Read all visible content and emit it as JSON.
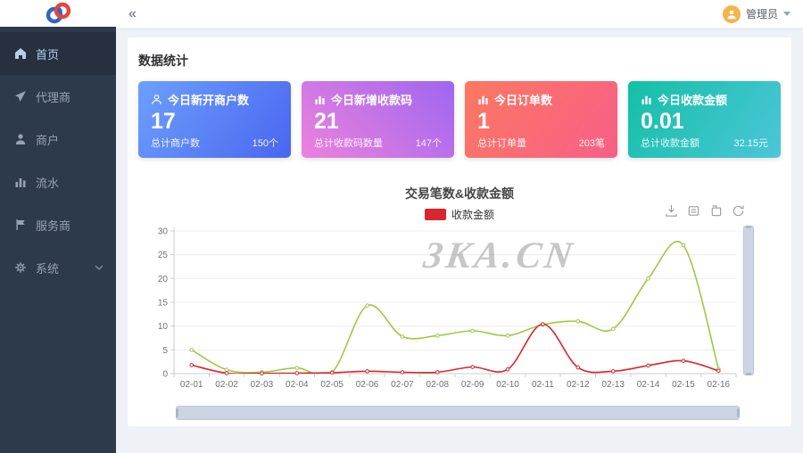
{
  "header": {
    "collapse_icon": "«",
    "user": {
      "name": "管理员"
    }
  },
  "sidebar": {
    "items": [
      {
        "label": "首页",
        "icon": "home-icon",
        "active": true
      },
      {
        "label": "代理商",
        "icon": "send-icon",
        "active": false
      },
      {
        "label": "商户",
        "icon": "user-icon",
        "active": false
      },
      {
        "label": "流水",
        "icon": "bar-chart-icon",
        "active": false
      },
      {
        "label": "服务商",
        "icon": "flag-icon",
        "active": false
      },
      {
        "label": "系统",
        "icon": "gear-icon",
        "active": false,
        "has_children": true
      }
    ]
  },
  "main": {
    "section_title": "数据统计",
    "cards": [
      {
        "icon": "user-icon",
        "title": "今日新开商户数",
        "value": "17",
        "footer_label": "总计商户数",
        "footer_value": "150个",
        "gradient_css": "linear-gradient(125deg,#6d9ffc,#4a66f0)"
      },
      {
        "icon": "bar-chart-icon",
        "title": "今日新增收款码",
        "value": "21",
        "footer_label": "总计收款码数量",
        "footer_value": "147个",
        "gradient_css": "linear-gradient(45deg,#ec82dd,#9f66f0)"
      },
      {
        "icon": "bar-chart-icon",
        "title": "今日订单数",
        "value": "1",
        "footer_label": "总计订单量",
        "footer_value": "203笔",
        "gradient_css": "linear-gradient(125deg,#fb7862,#f85f87)"
      },
      {
        "icon": "bar-chart-icon",
        "title": "今日收款金额",
        "value": "0.01",
        "footer_label": "总计收款金额",
        "footer_value": "32.15元",
        "gradient_css": "linear-gradient(125deg,#14bfa6,#4cc6d9)"
      }
    ],
    "watermark": "3KA.CN"
  },
  "chart_data": {
    "type": "line",
    "title": "交易笔数&收款金额",
    "categories": [
      "02-01",
      "02-02",
      "02-03",
      "02-04",
      "02-05",
      "02-06",
      "02-07",
      "02-08",
      "02-09",
      "02-10",
      "02-11",
      "02-12",
      "02-13",
      "02-14",
      "02-15",
      "02-16"
    ],
    "series": [
      {
        "name": "交易笔数",
        "color": "#9bca44",
        "values": [
          5,
          0.8,
          0.3,
          1.2,
          0.3,
          14.3,
          7.8,
          8,
          9,
          8,
          10.3,
          11,
          9.4,
          20,
          27,
          1
        ]
      },
      {
        "name": "收款金额",
        "color": "#d8262e",
        "values": [
          1.8,
          0.1,
          0.05,
          0.1,
          0.2,
          0.5,
          0.3,
          0.3,
          1.4,
          0.9,
          10.4,
          1.3,
          0.5,
          1.7,
          2.7,
          0.6
        ]
      }
    ],
    "legend": {
      "visible_items": [
        "收款金额"
      ],
      "position": "top"
    },
    "xlabel": "",
    "ylabel": "",
    "ylim": [
      0,
      30
    ],
    "yticks": [
      0,
      5,
      10,
      15,
      20,
      25,
      30
    ],
    "grid": true,
    "toolbox_icons": [
      "save-image-icon",
      "data-view-icon",
      "restore-icon",
      "refresh-icon"
    ]
  }
}
